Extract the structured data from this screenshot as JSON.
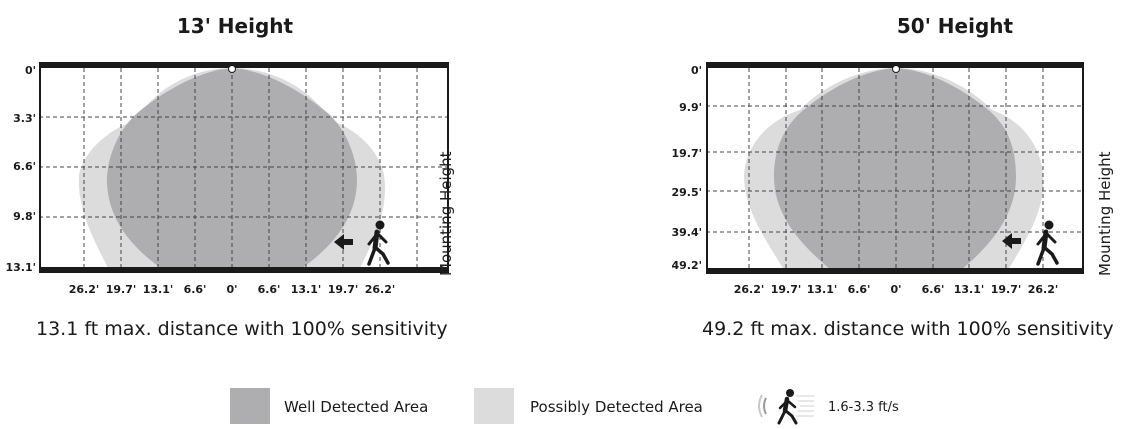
{
  "colors": {
    "well": "#aeaeb1",
    "possible": "#dcdcdc",
    "frame": "#1a1a1a",
    "grid": "#444444"
  },
  "panels": [
    {
      "title": "13' Height",
      "y_labels": [
        "0'",
        "3.3'",
        "6.6'",
        "9.8'",
        "13.1'"
      ],
      "x_labels": [
        "26.2'",
        "19.7'",
        "13.1'",
        "6.6'",
        "0'",
        "6.6'",
        "13.1'",
        "19.7'",
        "26.2'"
      ],
      "axis_label": "Mounting Height",
      "caption": "13.1 ft max. distance with 100% sensitivity"
    },
    {
      "title": "50' Height",
      "y_labels": [
        "0'",
        "9.9'",
        "19.7'",
        "29.5'",
        "39.4'",
        "49.2'"
      ],
      "x_labels": [
        "26.2'",
        "19.7'",
        "13.1'",
        "6.6'",
        "0'",
        "6.6'",
        "13.1'",
        "19.7'",
        "26.2'"
      ],
      "axis_label": "Mounting Height",
      "caption": "49.2 ft max. distance with 100% sensitivity"
    }
  ],
  "legend": {
    "well": "Well Detected Area",
    "possible": "Possibly Detected Area",
    "speed": "1.6-3.3 ft/s"
  }
}
